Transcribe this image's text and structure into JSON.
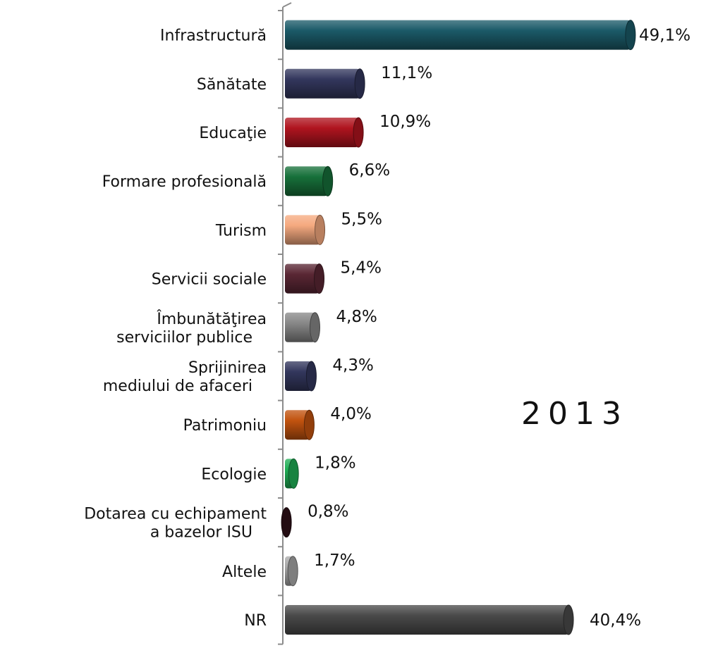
{
  "chart_data": {
    "type": "bar",
    "orientation": "horizontal",
    "annotation": "2013",
    "categories": [
      "Infrastructură",
      "Sănătate",
      "Educaţie",
      "Formare profesională",
      "Turism",
      "Servicii sociale",
      "Îmbunătăţirea serviciilor publice",
      "Sprijinirea mediului de afaceri",
      "Patrimoniu",
      "Ecologie",
      "Dotarea cu echipament a bazelor ISU",
      "Altele",
      "NR"
    ],
    "values": [
      49.1,
      11.1,
      10.9,
      6.6,
      5.5,
      5.4,
      4.8,
      4.3,
      4.0,
      1.8,
      0.8,
      1.7,
      40.4
    ],
    "value_labels": [
      "49,1%",
      "11,1%",
      "10,9%",
      "6,6%",
      "5,5%",
      "5,4%",
      "4,8%",
      "4,3%",
      "4,0%",
      "1,8%",
      "0,8%",
      "1,7%",
      "40,4%"
    ],
    "colors": [
      "#1b5a68",
      "#33375d",
      "#b0141f",
      "#17703a",
      "#f5a97f",
      "#5a2734",
      "#888888",
      "#33375d",
      "#c2530f",
      "#1fae55",
      "#2e1018",
      "#a8a8a8",
      "#4a4a4a"
    ],
    "xlim": [
      0,
      50
    ],
    "grid": false,
    "legend": "none"
  }
}
